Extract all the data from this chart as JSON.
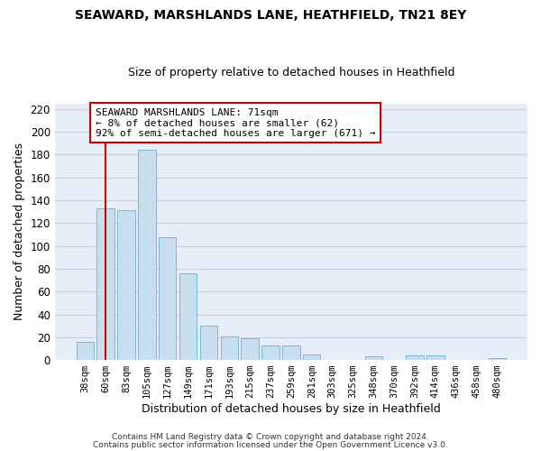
{
  "title": "SEAWARD, MARSHLANDS LANE, HEATHFIELD, TN21 8EY",
  "subtitle": "Size of property relative to detached houses in Heathfield",
  "xlabel": "Distribution of detached houses by size in Heathfield",
  "ylabel": "Number of detached properties",
  "bar_labels": [
    "38sqm",
    "60sqm",
    "83sqm",
    "105sqm",
    "127sqm",
    "149sqm",
    "171sqm",
    "193sqm",
    "215sqm",
    "237sqm",
    "259sqm",
    "281sqm",
    "303sqm",
    "325sqm",
    "348sqm",
    "370sqm",
    "392sqm",
    "414sqm",
    "436sqm",
    "458sqm",
    "480sqm"
  ],
  "bar_heights": [
    16,
    133,
    131,
    184,
    108,
    76,
    30,
    21,
    19,
    13,
    13,
    5,
    0,
    0,
    3,
    0,
    4,
    4,
    0,
    0,
    2
  ],
  "bar_color": "#c8dff0",
  "bar_edge_color": "#7ab8d8",
  "vline_x": 1,
  "vline_color": "#cc0000",
  "annotation_text": "SEAWARD MARSHLANDS LANE: 71sqm\n← 8% of detached houses are smaller (62)\n92% of semi-detached houses are larger (671) →",
  "annotation_box_color": "#ffffff",
  "annotation_box_edge": "#cc0000",
  "ylim": [
    0,
    225
  ],
  "yticks": [
    0,
    20,
    40,
    60,
    80,
    100,
    120,
    140,
    160,
    180,
    200,
    220
  ],
  "footer_line1": "Contains HM Land Registry data © Crown copyright and database right 2024.",
  "footer_line2": "Contains public sector information licensed under the Open Government Licence v3.0.",
  "fig_background_color": "#ffffff",
  "plot_background_color": "#e8eef8",
  "grid_color": "#c8d0e0",
  "title_fontsize": 10,
  "subtitle_fontsize": 9
}
